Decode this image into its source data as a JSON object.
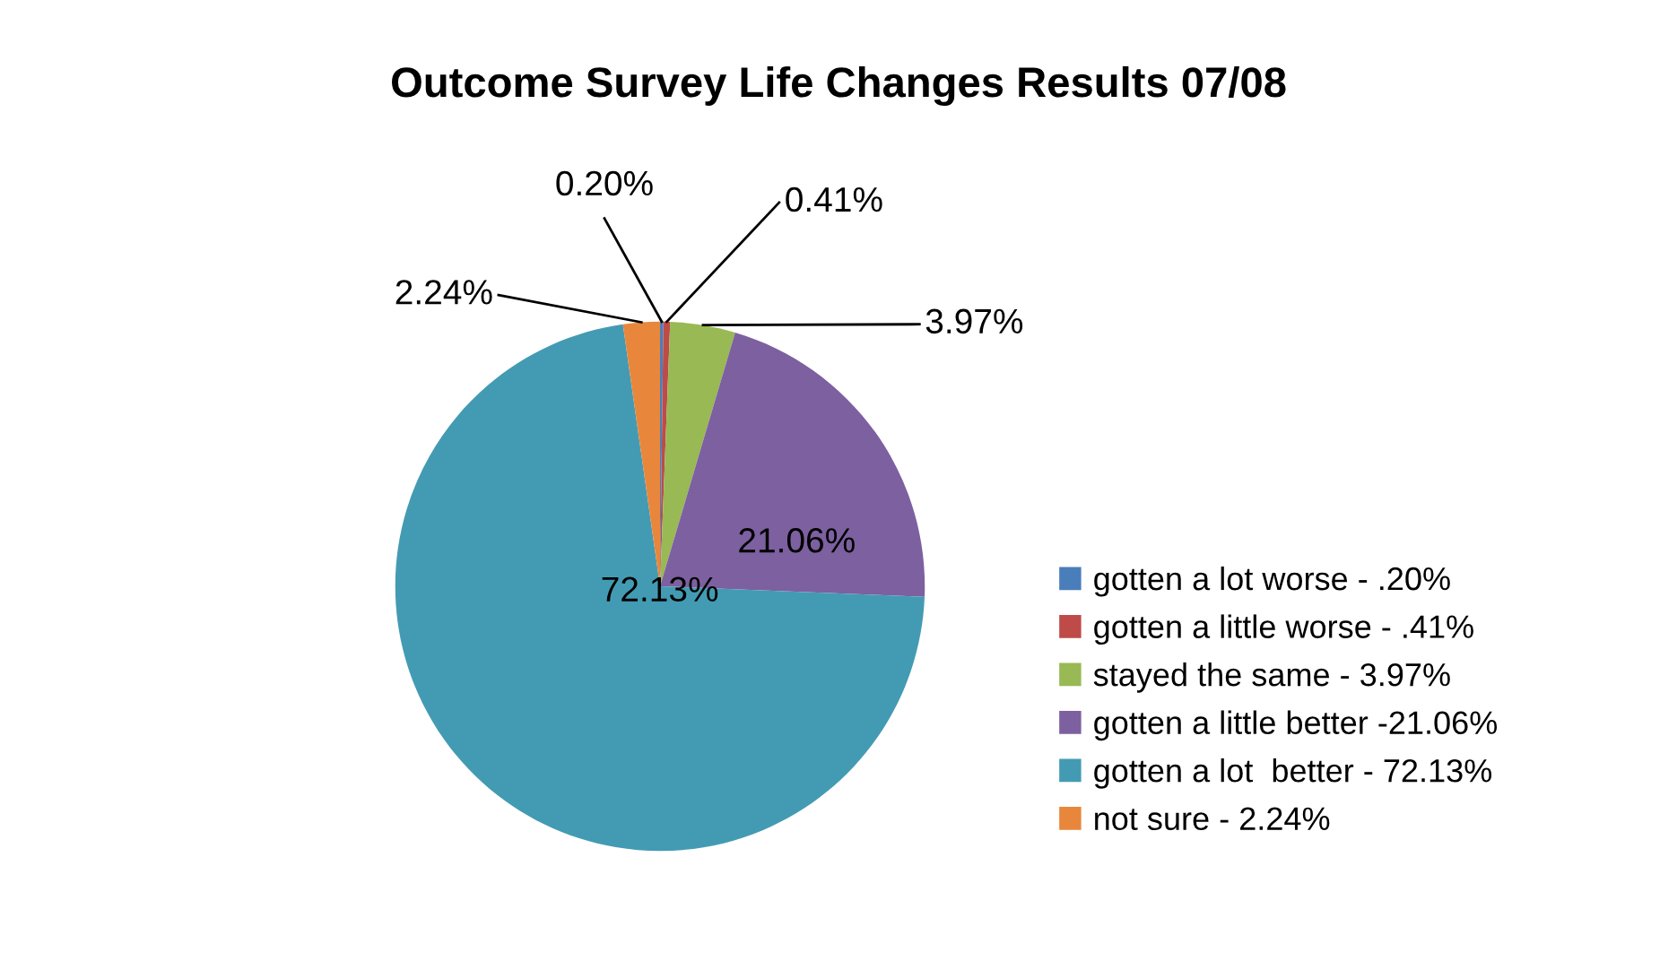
{
  "chart_data": {
    "type": "pie",
    "title": "Outcome Survey Life Changes Results 07/08",
    "categories": [
      "gotten a lot worse - .20%",
      "gotten a little worse - .41%",
      "stayed the same - 3.97%",
      "gotten a little better -21.06%",
      "gotten a lot  better - 72.13%",
      "not sure - 2.24%"
    ],
    "values": [
      0.2,
      0.41,
      3.97,
      21.06,
      72.13,
      2.24
    ],
    "colors": [
      "#4a7ebb",
      "#be4b48",
      "#98b954",
      "#7d60a0",
      "#439bb3",
      "#e8873c"
    ],
    "value_labels": [
      "0.20%",
      "0.41%",
      "3.97%",
      "21.06%",
      "72.13%",
      "2.24%"
    ],
    "legend": "right"
  }
}
